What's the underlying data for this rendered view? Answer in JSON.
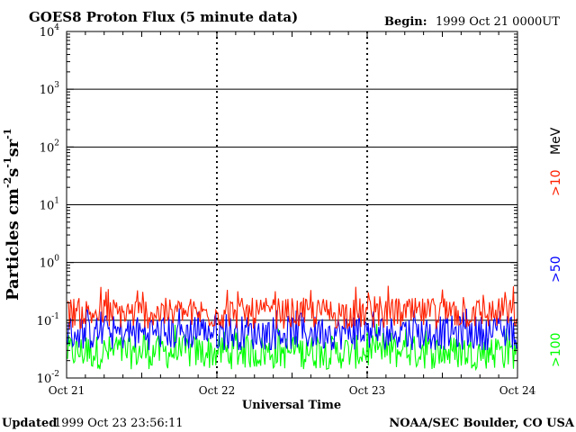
{
  "chart_data": {
    "type": "line",
    "title": "GOES8 Proton Flux (5 minute data)",
    "begin_label": "Begin:",
    "begin_value": "1999 Oct 21 0000UT",
    "xlabel": "Universal Time",
    "ylabel": "Particles cm",
    "ylabel_sup1": "-2",
    "ylabel_mid1": "s",
    "ylabel_sup2": "-1",
    "ylabel_mid2": "sr",
    "ylabel_sup3": "-1",
    "x_ticks": [
      "Oct 21",
      "Oct 22",
      "Oct 23",
      "Oct 24"
    ],
    "y_scale": "log",
    "ylim": [
      0.01,
      10000
    ],
    "y_ticks": [
      {
        "base": "10",
        "exp": "4",
        "value": 10000
      },
      {
        "base": "10",
        "exp": "3",
        "value": 1000
      },
      {
        "base": "10",
        "exp": "2",
        "value": 100
      },
      {
        "base": "10",
        "exp": "1",
        "value": 10
      },
      {
        "base": "10",
        "exp": "0",
        "value": 1
      },
      {
        "base": "10",
        "exp": "-1",
        "value": 0.1
      },
      {
        "base": "10",
        "exp": "-2",
        "value": 0.01
      }
    ],
    "grid": true,
    "series": [
      {
        "name": ">10",
        "color": "#ff2000",
        "typical": 0.14,
        "min": 0.07,
        "max": 0.4
      },
      {
        "name": ">50",
        "color": "#0000ff",
        "typical": 0.065,
        "min": 0.03,
        "max": 0.17
      },
      {
        "name": ">100",
        "color": "#00ff00",
        "typical": 0.03,
        "min": 0.014,
        "max": 0.09
      }
    ],
    "unit_label": "MeV"
  },
  "footer": {
    "updated_label": "Updated",
    "updated_value": "1999 Oct 23 23:56:11",
    "source": "NOAA/SEC Boulder, CO USA"
  }
}
